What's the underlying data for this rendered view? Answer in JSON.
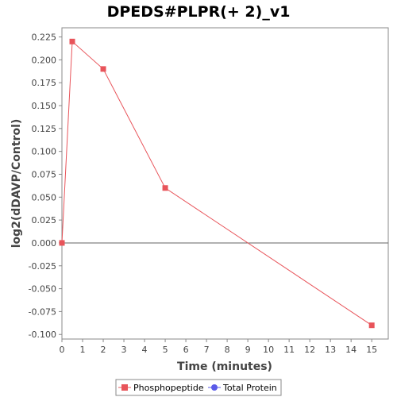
{
  "chart_data": {
    "type": "line",
    "title": "DPEDS#PLPR(+ 2)_v1",
    "xlabel": "Time (minutes)",
    "ylabel": "log2(dDAVP/Control)",
    "xlim": [
      0,
      15.8
    ],
    "ylim": [
      -0.105,
      0.235
    ],
    "x_ticks": [
      "0",
      "1",
      "2",
      "3",
      "4",
      "5",
      "6",
      "7",
      "8",
      "9",
      "10",
      "11",
      "12",
      "13",
      "14",
      "15"
    ],
    "y_ticks": [
      "0.225",
      "0.200",
      "0.175",
      "0.150",
      "0.125",
      "0.100",
      "0.075",
      "0.050",
      "0.025",
      "0.000",
      "-0.025",
      "-0.050",
      "-0.075",
      "-0.100"
    ],
    "zero_line": true,
    "grid": false,
    "legend_position": "bottom",
    "series": [
      {
        "name": "Phosphopeptide",
        "color": "#e8545a",
        "marker": "square",
        "x": [
          0,
          0.5,
          2,
          5,
          15
        ],
        "y": [
          0.0,
          0.22,
          0.19,
          0.06,
          -0.09
        ]
      },
      {
        "name": "Total Protein",
        "color": "#5a5ae8",
        "marker": "circle",
        "x": [],
        "y": []
      }
    ]
  }
}
